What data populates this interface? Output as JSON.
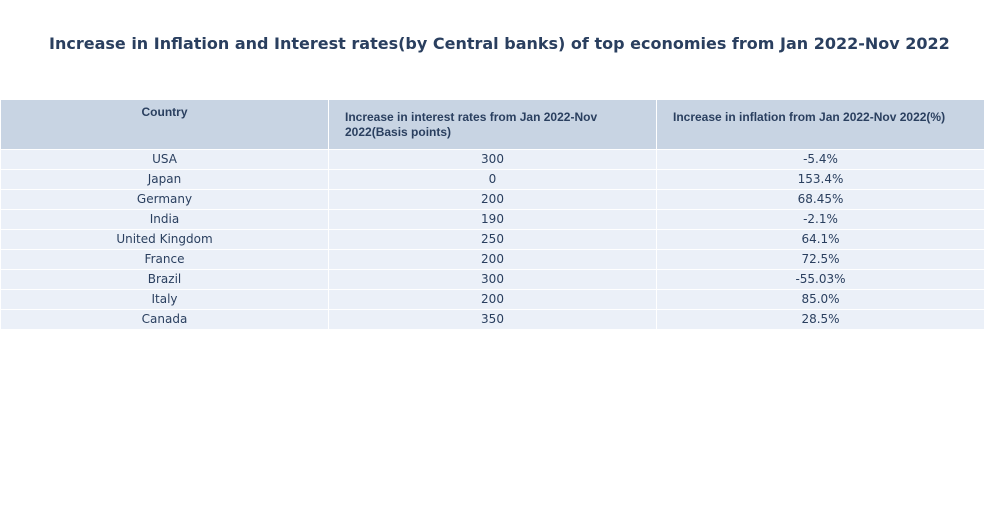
{
  "chart_data": {
    "type": "table",
    "title": "Increase in Inflation and Interest rates(by Central banks) of top economies from Jan 2022-Nov 2022",
    "columns": [
      "Country",
      "Increase in interest rates from Jan 2022-Nov 2022(Basis points)",
      "Increase in inflation from Jan 2022-Nov 2022(%)"
    ],
    "rows": [
      [
        "USA",
        "300",
        "-5.4%"
      ],
      [
        "Japan",
        "0",
        "153.4%"
      ],
      [
        "Germany",
        "200",
        "68.45%"
      ],
      [
        "India",
        "190",
        "-2.1%"
      ],
      [
        "United Kingdom",
        "250",
        "64.1%"
      ],
      [
        "France",
        "200",
        "72.5%"
      ],
      [
        "Brazil",
        "300",
        "-55.03%"
      ],
      [
        "Italy",
        "200",
        "85.0%"
      ],
      [
        "Canada",
        "350",
        "28.5%"
      ]
    ],
    "colors": {
      "header_fill": "#c8d4e3",
      "cell_fill": "#ebf0f8",
      "text": "#2a3f5f"
    }
  }
}
